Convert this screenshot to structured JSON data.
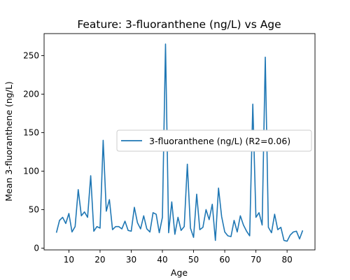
{
  "chart_data": {
    "type": "line",
    "title": "Feature: 3-fluoranthene (ng/L) vs Age",
    "xlabel": "Age",
    "ylabel": "Mean 3-fluoranthene (ng/L)",
    "xlim": [
      2.05,
      88.95
    ],
    "ylim": [
      -2.3,
      278.6
    ],
    "xticks": [
      10,
      20,
      30,
      40,
      50,
      60,
      70,
      80
    ],
    "yticks": [
      0,
      50,
      100,
      150,
      200,
      250
    ],
    "grid": false,
    "legend_position": "center-right",
    "series": [
      {
        "name": "3-fluoranthene (ng/L) (R2=0.06)",
        "color": "#1f77b4",
        "x": [
          6,
          7,
          8,
          9,
          10,
          11,
          12,
          13,
          14,
          15,
          16,
          17,
          18,
          19,
          20,
          21,
          22,
          23,
          24,
          25,
          26,
          27,
          28,
          29,
          30,
          31,
          32,
          33,
          34,
          35,
          36,
          37,
          38,
          39,
          40,
          41,
          42,
          43,
          44,
          45,
          46,
          47,
          48,
          49,
          50,
          51,
          52,
          53,
          54,
          55,
          56,
          57,
          58,
          59,
          60,
          61,
          62,
          63,
          64,
          65,
          66,
          67,
          68,
          69,
          70,
          71,
          72,
          73,
          74,
          75,
          76,
          77,
          78,
          79,
          80,
          81,
          82,
          83,
          84,
          85
        ],
        "y": [
          20,
          36,
          40,
          32,
          45,
          21,
          28,
          76,
          42,
          47,
          40,
          94,
          22,
          28,
          26,
          140,
          48,
          63,
          24,
          28,
          28,
          25,
          35,
          23,
          22,
          53,
          33,
          25,
          42,
          25,
          21,
          46,
          44,
          20,
          40,
          265,
          20,
          60,
          18,
          40,
          23,
          28,
          109,
          26,
          14,
          70,
          24,
          27,
          50,
          37,
          57,
          10,
          78,
          41,
          21,
          16,
          15,
          36,
          21,
          42,
          30,
          22,
          16,
          187,
          40,
          46,
          30,
          248,
          27,
          20,
          44,
          24,
          27,
          10,
          9,
          17,
          21,
          22,
          12,
          23
        ]
      }
    ]
  }
}
